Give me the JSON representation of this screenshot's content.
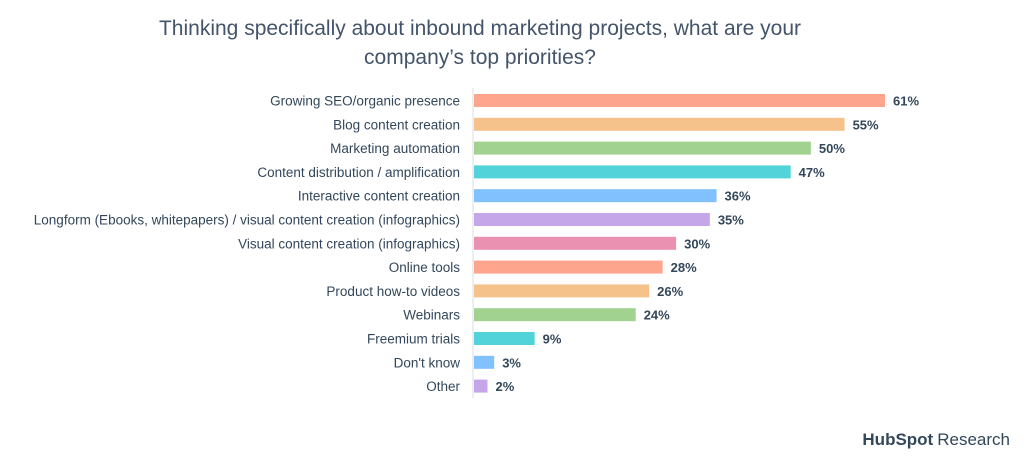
{
  "chart_data": {
    "type": "bar",
    "orientation": "horizontal",
    "title": "Thinking specifically about inbound marketing projects, what are your company’s top priorities?",
    "categories": [
      "Growing SEO/organic presence",
      "Blog content creation",
      "Marketing automation",
      "Content distribution / amplification",
      "Interactive content creation",
      "Longform (Ebooks, whitepapers) / visual content creation (infographics)",
      "Visual content creation (infographics)",
      "Online tools",
      "Product how-to videos",
      "Webinars",
      "Freemium trials",
      "Don't know",
      "Other"
    ],
    "values": [
      61,
      55,
      50,
      47,
      36,
      35,
      30,
      28,
      26,
      24,
      9,
      3,
      2
    ],
    "value_labels": [
      "61%",
      "55%",
      "50%",
      "47%",
      "36%",
      "35%",
      "30%",
      "28%",
      "26%",
      "24%",
      "9%",
      "3%",
      "2%"
    ],
    "colors": [
      "#fea58e",
      "#f5c28c",
      "#a2d28f",
      "#51d3d9",
      "#81c1fd",
      "#c5a7e9",
      "#ea90b1",
      "#fea58e",
      "#f5c28c",
      "#a2d28f",
      "#51d3d9",
      "#81c1fd",
      "#c5a7e9"
    ],
    "xlim": [
      0,
      61
    ],
    "grid": false,
    "legend": "none"
  },
  "brand": {
    "hub": "HubSpot",
    "research": "Research"
  }
}
